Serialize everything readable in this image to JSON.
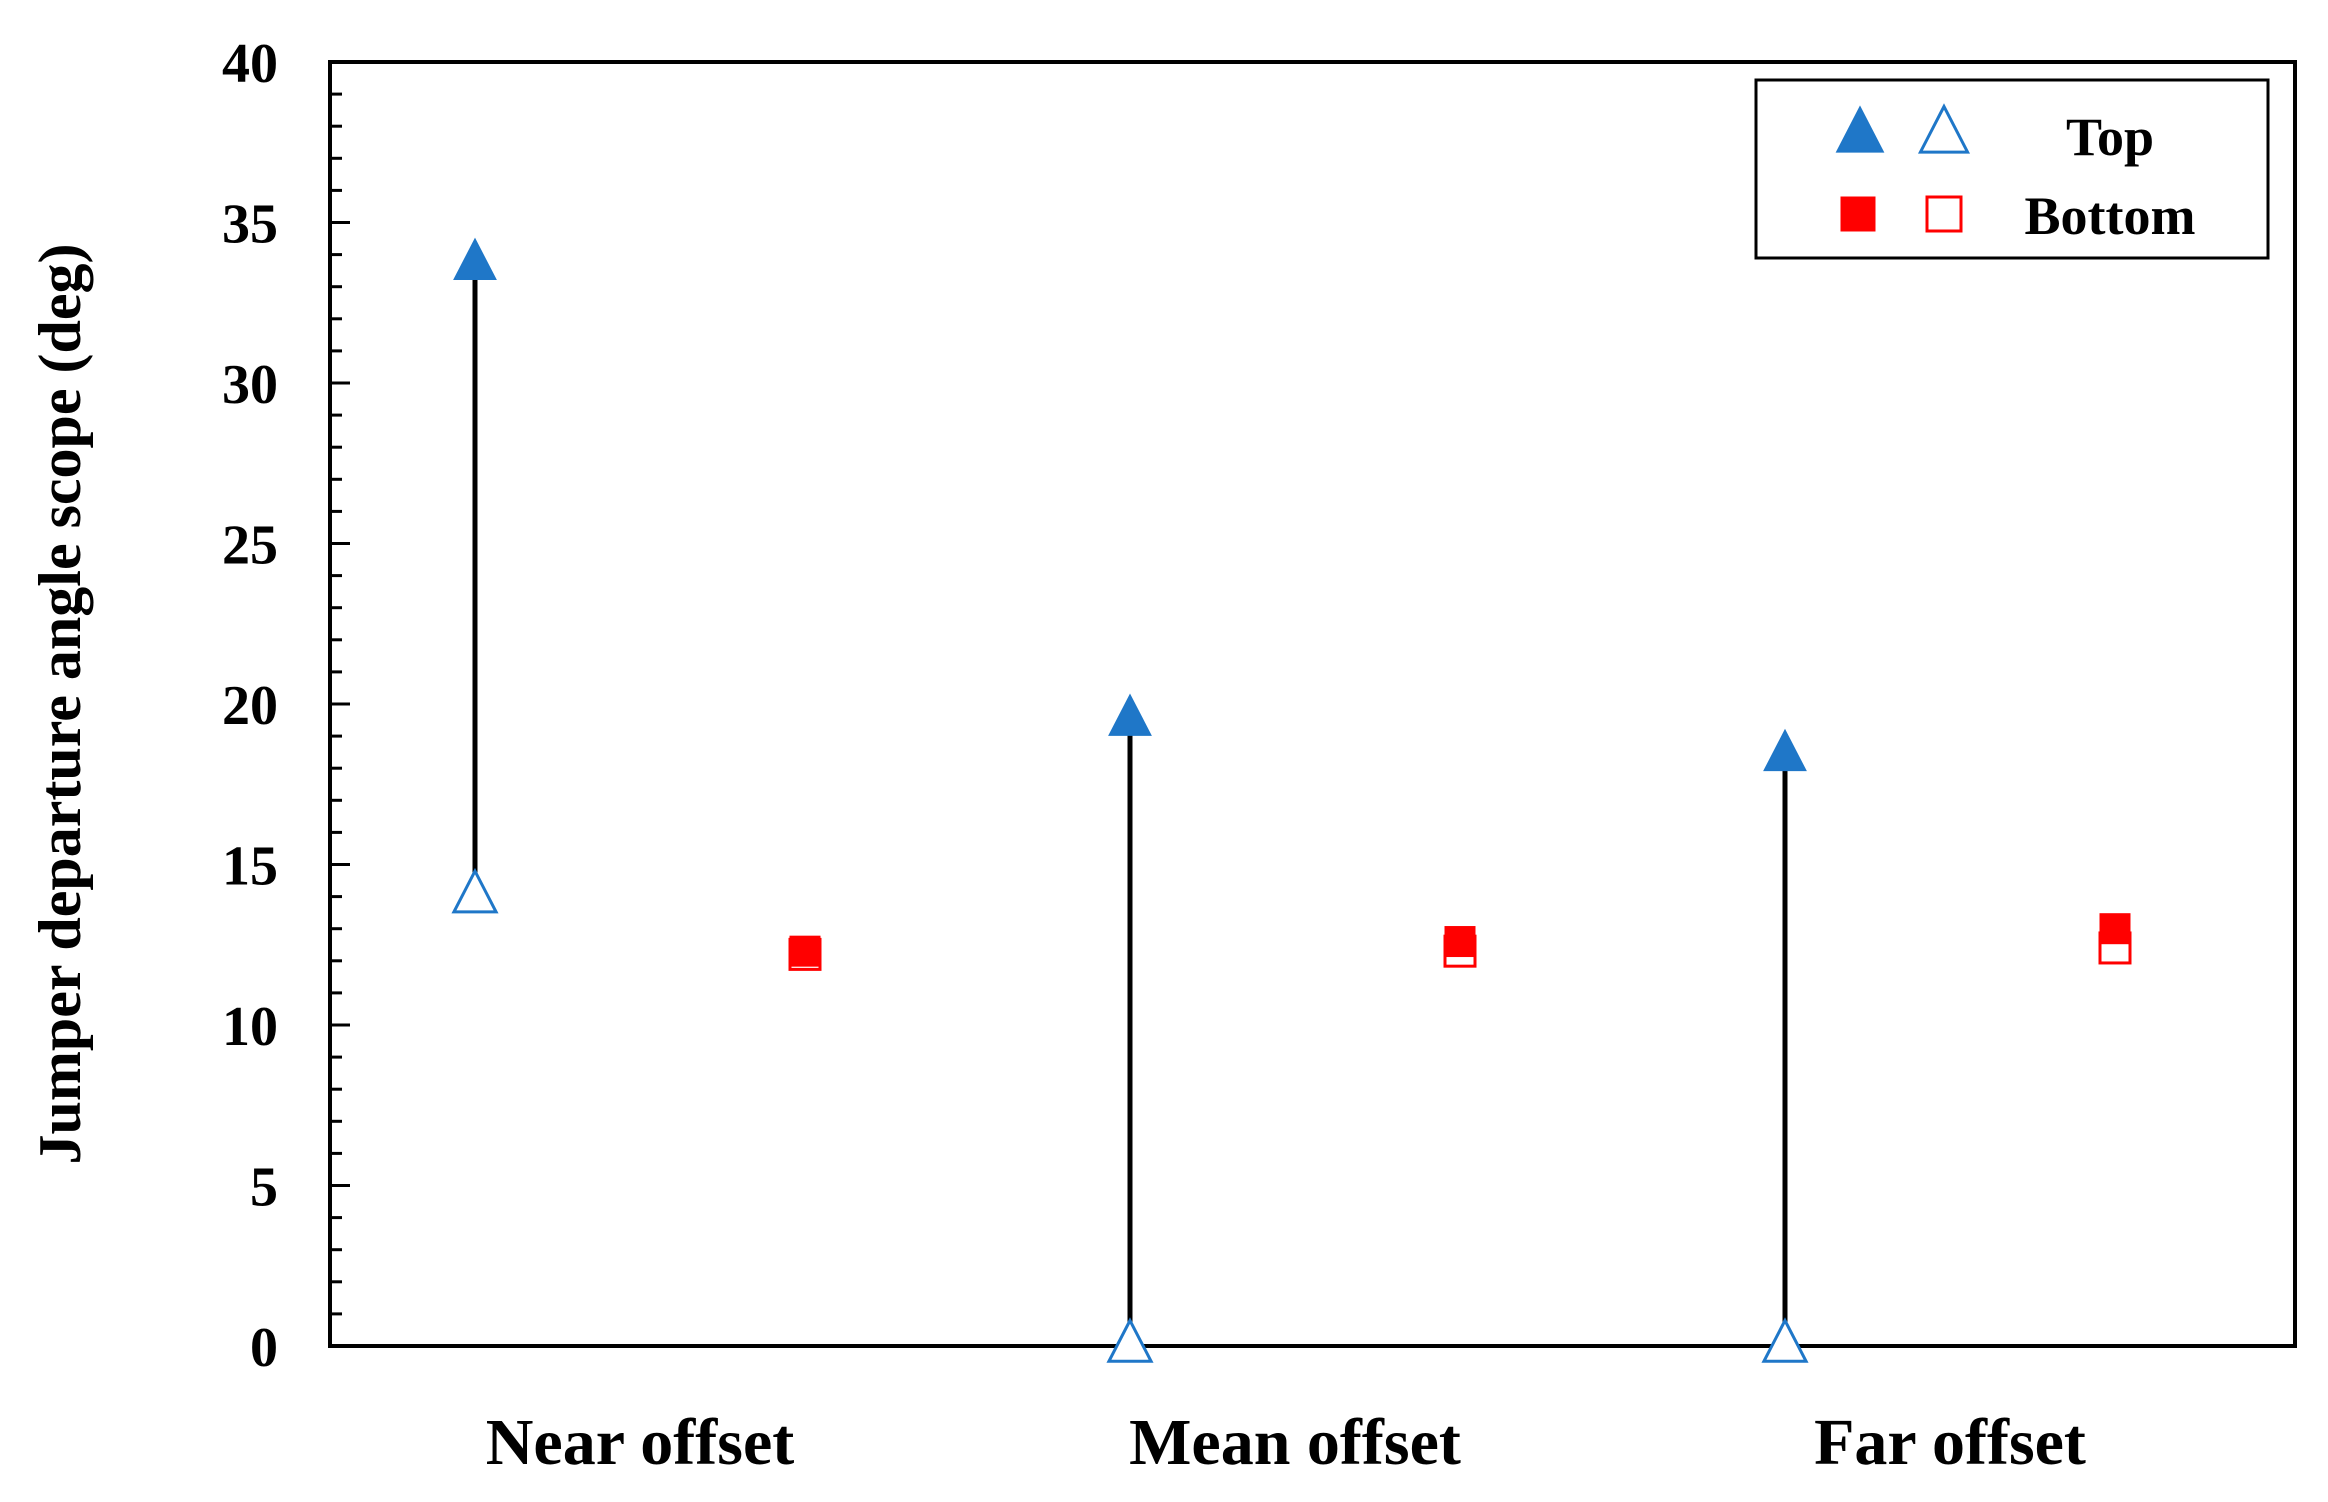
{
  "chart_data": {
    "type": "scatter",
    "title": "",
    "xlabel": "",
    "ylabel": "Jumper departure angle scope (deg)",
    "ylim": [
      0,
      40
    ],
    "yticks": [
      0,
      5,
      10,
      15,
      20,
      25,
      30,
      35,
      40
    ],
    "ytick_labels": [
      "0",
      "5",
      "10",
      "15",
      "20",
      "25",
      "30",
      "35",
      "40"
    ],
    "minor_tick_step": 1,
    "grid": false,
    "legend_position": "top-right",
    "categories": [
      "Near offset",
      "Mean offset",
      "Far offset"
    ],
    "series": [
      {
        "name": "Top",
        "legend_label": "Top",
        "color": "#1f77c8",
        "marker": "triangle",
        "max_values": [
          33.7,
          19.5,
          18.4
        ],
        "min_values": [
          14.0,
          0.0,
          0.0
        ],
        "range_line_color": "#000000"
      },
      {
        "name": "Bottom",
        "legend_label": "Bottom",
        "color": "#ff0000",
        "marker": "square",
        "max_values": [
          12.3,
          12.6,
          13.0
        ],
        "min_values": [
          12.2,
          12.3,
          12.4
        ],
        "range_line_color": "#000000"
      }
    ]
  }
}
